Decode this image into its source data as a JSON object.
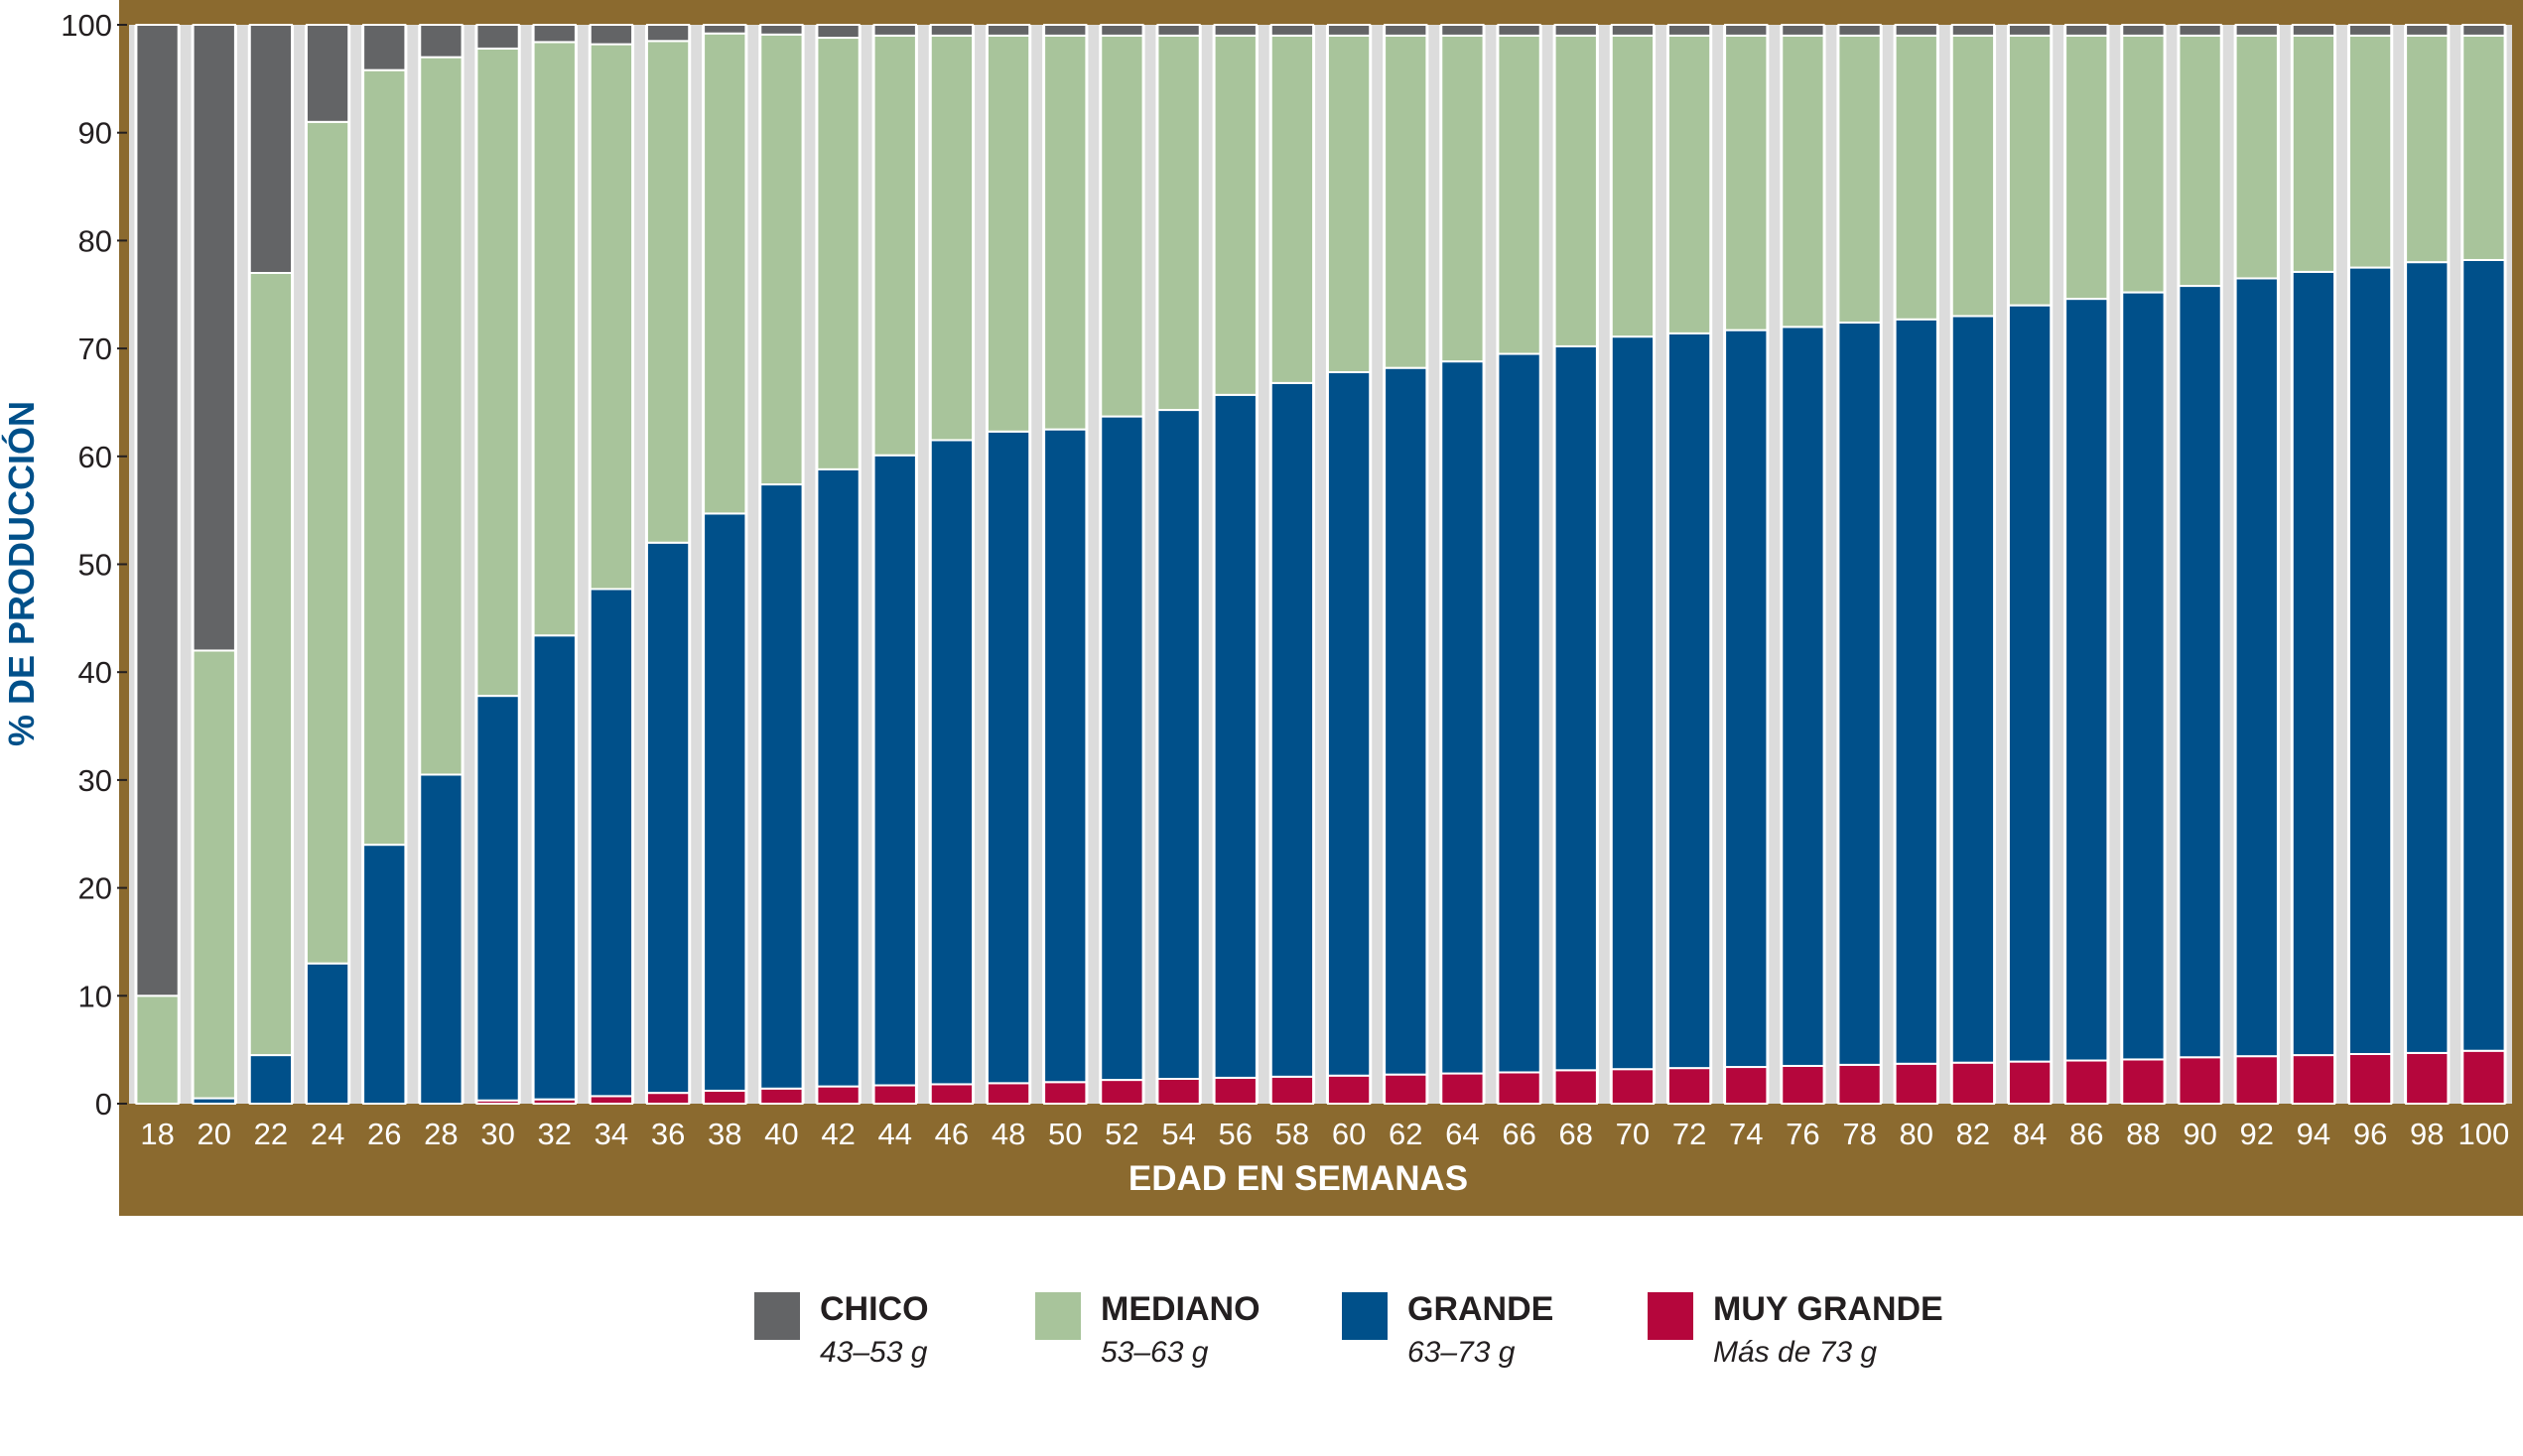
{
  "chart_data": {
    "type": "bar",
    "stacked": true,
    "title": "",
    "ylabel": "% DE PRODUCCIÓN",
    "xlabel": "EDAD EN SEMANAS",
    "ylim": [
      0,
      100
    ],
    "yticks": [
      0,
      10,
      20,
      30,
      40,
      50,
      60,
      70,
      80,
      90,
      100
    ],
    "grid": false,
    "legend_position": "bottom",
    "frame_color": "#8b6a2f",
    "categories": [
      "18",
      "20",
      "22",
      "24",
      "26",
      "28",
      "30",
      "32",
      "34",
      "36",
      "38",
      "40",
      "42",
      "44",
      "46",
      "48",
      "50",
      "52",
      "54",
      "56",
      "58",
      "60",
      "62",
      "64",
      "66",
      "68",
      "70",
      "72",
      "74",
      "76",
      "78",
      "80",
      "82",
      "84",
      "86",
      "88",
      "90",
      "92",
      "94",
      "96",
      "98",
      "100"
    ],
    "series": [
      {
        "name": "MUY GRANDE",
        "color": "#b5063c",
        "values": [
          0,
          0,
          0,
          0,
          0,
          0,
          0.3,
          0.4,
          0.7,
          1,
          1.2,
          1.4,
          1.6,
          1.7,
          1.8,
          1.9,
          2,
          2.2,
          2.3,
          2.4,
          2.5,
          2.6,
          2.7,
          2.8,
          2.9,
          3.1,
          3.2,
          3.3,
          3.4,
          3.5,
          3.6,
          3.7,
          3.8,
          3.9,
          4.0,
          4.1,
          4.3,
          4.4,
          4.5,
          4.6,
          4.7,
          4.9
        ]
      },
      {
        "name": "GRANDE",
        "color": "#00508a",
        "values": [
          0,
          0.5,
          4.5,
          13,
          24,
          30.5,
          37.5,
          43,
          47,
          51,
          53.5,
          56,
          57.2,
          58.4,
          59.7,
          60.4,
          60.5,
          61.5,
          62,
          63.3,
          64.3,
          65.2,
          65.5,
          66,
          66.6,
          67.1,
          67.9,
          68.1,
          68.3,
          68.5,
          68.8,
          69,
          69.2,
          70.1,
          70.6,
          71.1,
          71.5,
          72.1,
          72.6,
          72.9,
          73.3,
          73.3
        ]
      },
      {
        "name": "MEDIANO",
        "color": "#a8c49b",
        "values": [
          10,
          41.5,
          72.5,
          78,
          71.8,
          66.5,
          60,
          55,
          50.5,
          46.5,
          44.5,
          41.7,
          40,
          38.9,
          37.5,
          36.7,
          36.5,
          35.3,
          34.7,
          33.3,
          32.2,
          31.2,
          30.8,
          30.2,
          29.5,
          28.8,
          27.9,
          27.6,
          27.3,
          27,
          26.6,
          26.3,
          26,
          25,
          24.4,
          23.8,
          23.2,
          22.5,
          21.9,
          21.5,
          21,
          20.8
        ]
      },
      {
        "name": "CHICO",
        "color": "#636466",
        "values": [
          90,
          58,
          23,
          9,
          4.2,
          3,
          2.2,
          1.6,
          1.8,
          1.5,
          0.8,
          0.9,
          1.2,
          1,
          1,
          1,
          1,
          1,
          1,
          1,
          1,
          1,
          1,
          1,
          1,
          1,
          1,
          1,
          1,
          1,
          1,
          1,
          1,
          1,
          1,
          1,
          1,
          1,
          1,
          1,
          1,
          1
        ]
      }
    ]
  },
  "legend": [
    {
      "name": "CHICO",
      "range": "43–53 g",
      "color": "#636466"
    },
    {
      "name": "MEDIANO",
      "range": "53–63 g",
      "color": "#a8c49b"
    },
    {
      "name": "GRANDE",
      "range": "63–73 g",
      "color": "#00508a"
    },
    {
      "name": "MUY GRANDE",
      "range": "Más de 73 g",
      "color": "#b5063c"
    }
  ]
}
